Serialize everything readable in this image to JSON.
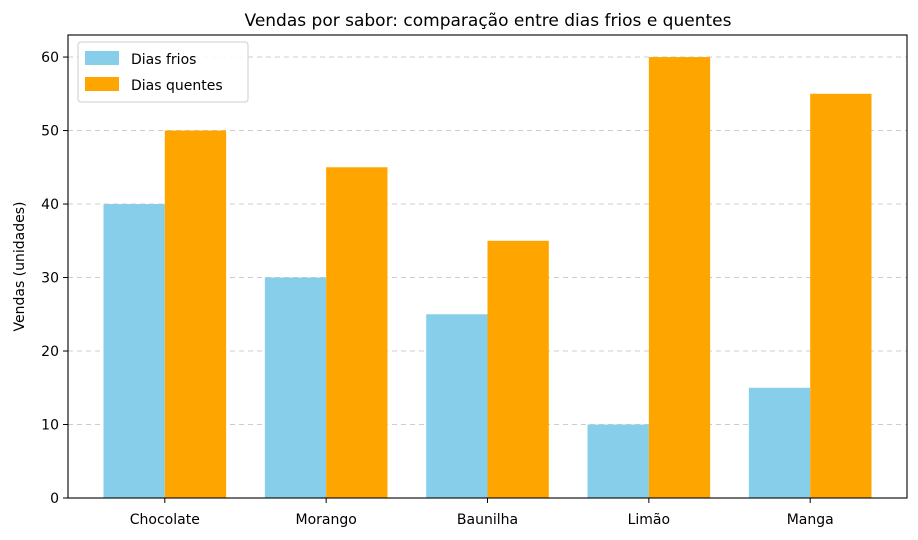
{
  "chart_data": {
    "type": "bar",
    "title": "Vendas por sabor: comparação entre dias frios e quentes",
    "xlabel": "",
    "ylabel": "Vendas (unidades)",
    "categories": [
      "Chocolate",
      "Morango",
      "Baunilha",
      "Limão",
      "Manga"
    ],
    "series": [
      {
        "name": "Dias frios",
        "values": [
          40,
          30,
          25,
          10,
          15
        ],
        "color": "#87ceeb"
      },
      {
        "name": "Dias quentes",
        "values": [
          50,
          45,
          35,
          60,
          55
        ],
        "color": "#ffa500"
      }
    ],
    "ylim": [
      0,
      63
    ],
    "yticks": [
      0,
      10,
      20,
      30,
      40,
      50,
      60
    ],
    "grid": "y-dashed",
    "legend_position": "top-left"
  }
}
